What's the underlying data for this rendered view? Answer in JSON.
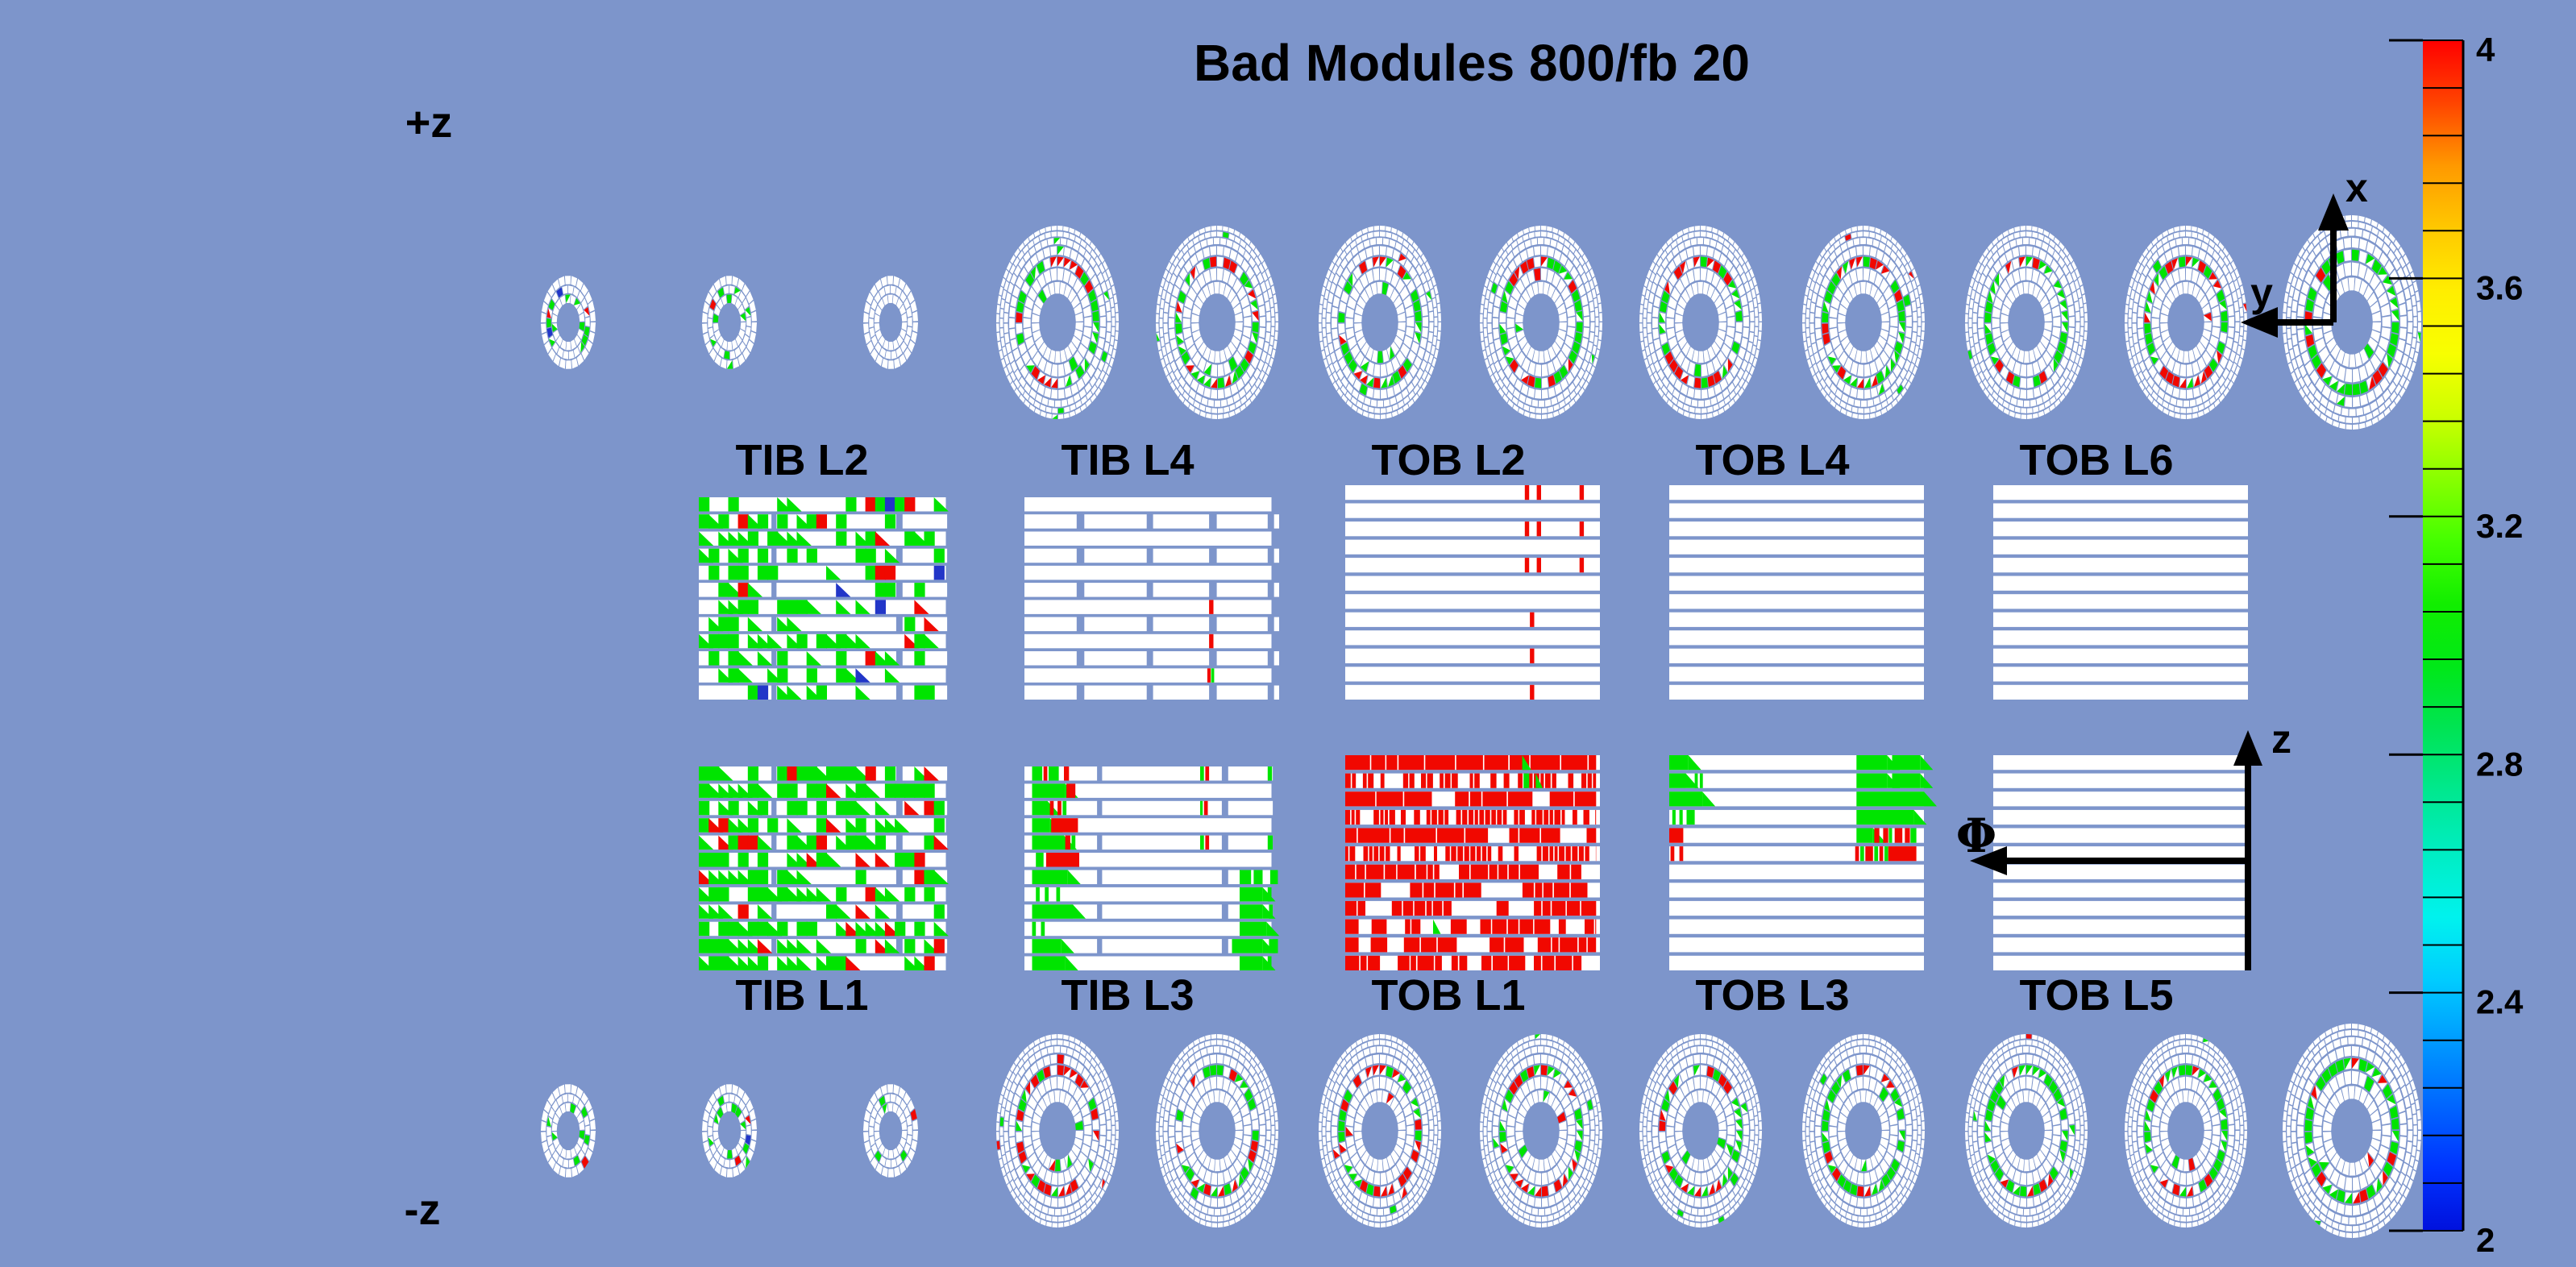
{
  "title": "Bad Modules 800/fb 20",
  "side_labels": {
    "plus_z": "+z",
    "minus_z": "-z"
  },
  "axis_annotations": {
    "x": "x",
    "y": "y",
    "z": "z",
    "phi": "Φ"
  },
  "colorbar": {
    "tick_labels": [
      "4",
      "3.6",
      "3.2",
      "2.8",
      "2.4",
      "2"
    ],
    "minor_divisions": 25,
    "palette_top_to_bottom": [
      "#ff0000",
      "#ff4400",
      "#ff9900",
      "#ffc800",
      "#ffee00",
      "#f8ff00",
      "#ccff00",
      "#88ff00",
      "#44ff00",
      "#11ee00",
      "#00e818",
      "#00e455",
      "#00e890",
      "#00eec4",
      "#00f2ee",
      "#00ccff",
      "#0099ff",
      "#0066ff",
      "#0033ff",
      "#0011dd"
    ]
  },
  "module_colors": {
    "good_green": "#00e400",
    "bad_red": "#f10800",
    "rare_blue": "#2236c8",
    "empty_white": "#ffffff"
  },
  "chart_data": {
    "type": "heatmap",
    "title": "Bad Modules 800/fb 20",
    "color_scale": {
      "min": 2,
      "max": 4,
      "tick_values": [
        4,
        3.6,
        3.2,
        2.8,
        2.4,
        2
      ],
      "palette": "rainbow, red=4 at top through yellow/green/cyan to blue=2 at bottom"
    },
    "endcap": {
      "plus_z": {
        "label": "+z",
        "small_disks": 3,
        "large_disks": 9
      },
      "minus_z": {
        "label": "-z",
        "small_disks": 3,
        "large_disks": 9
      },
      "small_disk_rings": [
        {
          "f0": 0.42,
          "f1": 0.6,
          "n": 18,
          "pg": 0.14,
          "pr": 0.03,
          "pb": 0.012
        },
        {
          "f0": 0.63,
          "f1": 0.79,
          "n": 22,
          "pg": 0.12,
          "pr": 0.025,
          "pb": 0.01
        },
        {
          "f0": 0.82,
          "f1": 1.0,
          "n": 26,
          "pg": 0.03,
          "pr": 0.008,
          "pb": 0
        }
      ],
      "large_disk_rings": [
        {
          "f0": 0.3,
          "f1": 0.42,
          "n": 26,
          "pg": 0.02,
          "pr": 0.008
        },
        {
          "f0": 0.44,
          "f1": 0.56,
          "n": 30,
          "pg": 0.025,
          "pr": 0.008
        },
        {
          "f0": 0.58,
          "f1": 0.68,
          "n": 36
        },
        {
          "f0": 0.7,
          "f1": 0.79,
          "n": 42,
          "pg": 0.02,
          "pr": 0.006
        },
        {
          "f0": 0.81,
          "f1": 0.875,
          "n": 50,
          "pg": 0.012,
          "pr": 0.004
        },
        {
          "f0": 0.89,
          "f1": 0.94,
          "n": 58,
          "pg": 0.008,
          "pr": 0.003
        },
        {
          "f0": 0.955,
          "f1": 1.0,
          "n": 64,
          "pg": 0.006,
          "pr": 0.002
        }
      ],
      "colored_ring_index": 2,
      "profiles": {
        "top": {
          "green_base": 0.42,
          "green_step": 0.05,
          "red_base": 0.3,
          "red_step": -0.022,
          "top_green": 0.25,
          "top_red": 0.55,
          "bottom_green": 0.45,
          "bottom_red": 0.45
        },
        "bottom": {
          "green_base": 0.4,
          "green_step": 0.06,
          "red_base": 0.3,
          "red_step": -0.025,
          "top_green": 0.3,
          "top_red": 0.5,
          "bottom_green": 0.5,
          "bottom_red": 0.4
        }
      }
    },
    "barrel": {
      "top_row": [
        {
          "label": "TIB L2",
          "type": "TIB",
          "pattern": "dense",
          "green": 0.4,
          "red": 0.055,
          "blue": 0.006,
          "seed": 12,
          "seg_phase": 1,
          "blocks": []
        },
        {
          "label": "TIB L4",
          "type": "TIB",
          "pattern": "blocks",
          "seg_phase": 1,
          "segments": [
            [
              0,
              0.205
            ],
            [
              0.235,
              0.48
            ],
            [
              0.505,
              0.725
            ],
            [
              0.755,
              0.955
            ],
            [
              0.98,
              1.0
            ]
          ],
          "blocks": [
            {
              "r": 6,
              "x0": 0.725,
              "x1": 0.742,
              "c": "r"
            },
            {
              "r": 8,
              "x0": 0.725,
              "x1": 0.742,
              "c": "r"
            },
            {
              "r": 10,
              "x0": 0.718,
              "x1": 0.731,
              "c": "r"
            },
            {
              "r": 10,
              "x0": 0.733,
              "x1": 0.745,
              "c": "g"
            }
          ]
        },
        {
          "label": "TOB L2",
          "type": "TOB",
          "pattern": "blocks",
          "blocks": [
            {
              "r": 0,
              "x0": 0.705,
              "x1": 0.722,
              "c": "r"
            },
            {
              "r": 0,
              "x0": 0.752,
              "x1": 0.769,
              "c": "r"
            },
            {
              "r": 0,
              "x0": 0.92,
              "x1": 0.937,
              "c": "r"
            },
            {
              "r": 2,
              "x0": 0.705,
              "x1": 0.722,
              "c": "r"
            },
            {
              "r": 2,
              "x0": 0.752,
              "x1": 0.769,
              "c": "r"
            },
            {
              "r": 2,
              "x0": 0.92,
              "x1": 0.937,
              "c": "r"
            },
            {
              "r": 4,
              "x0": 0.705,
              "x1": 0.722,
              "c": "r"
            },
            {
              "r": 4,
              "x0": 0.752,
              "x1": 0.769,
              "c": "r"
            },
            {
              "r": 4,
              "x0": 0.92,
              "x1": 0.937,
              "c": "r"
            },
            {
              "r": 7,
              "x0": 0.725,
              "x1": 0.742,
              "c": "r"
            },
            {
              "r": 9,
              "x0": 0.725,
              "x1": 0.742,
              "c": "r"
            },
            {
              "r": 11,
              "x0": 0.725,
              "x1": 0.742,
              "c": "r"
            }
          ]
        },
        {
          "label": "TOB L4",
          "type": "TOB",
          "pattern": "empty",
          "blocks": []
        },
        {
          "label": "TOB L6",
          "type": "TOB",
          "pattern": "empty",
          "blocks": []
        }
      ],
      "bottom_row": [
        {
          "label": "TIB L1",
          "type": "TIB",
          "pattern": "dense",
          "green": 0.58,
          "red": 0.085,
          "blue": 0.005,
          "seed": 77,
          "seg_phase": 0,
          "blocks": []
        },
        {
          "label": "TIB L3",
          "type": "TIB",
          "pattern": "blocks",
          "seg_phase": 0,
          "blocks": [
            {
              "r": 0,
              "x0": 0.03,
              "x1": 0.07,
              "c": "g"
            },
            {
              "r": 0,
              "x0": 0.075,
              "x1": 0.09,
              "c": "r"
            },
            {
              "r": 0,
              "x0": 0.095,
              "x1": 0.135,
              "c": "g"
            },
            {
              "r": 0,
              "x0": 0.155,
              "x1": 0.175,
              "c": "r"
            },
            {
              "r": 0,
              "x0": 0.69,
              "x1": 0.705,
              "c": "g"
            },
            {
              "r": 0,
              "x0": 0.71,
              "x1": 0.725,
              "c": "r"
            },
            {
              "r": 0,
              "x0": 0.955,
              "x1": 0.972,
              "c": "g"
            },
            {
              "r": 1,
              "x0": 0.03,
              "x1": 0.16,
              "c": "g"
            },
            {
              "r": 1,
              "x0": 0.165,
              "x1": 0.2,
              "c": "r"
            },
            {
              "r": 2,
              "x0": 0.03,
              "x1": 0.09,
              "c": "g"
            },
            {
              "r": 2,
              "x0": 0.1,
              "x1": 0.115,
              "c": "r"
            },
            {
              "r": 2,
              "x0": 0.13,
              "x1": 0.145,
              "c": "r"
            },
            {
              "r": 2,
              "x0": 0.15,
              "x1": 0.165,
              "c": "g"
            },
            {
              "r": 2,
              "x0": 0.69,
              "x1": 0.7,
              "c": "g"
            },
            {
              "r": 2,
              "x0": 0.705,
              "x1": 0.72,
              "c": "r"
            },
            {
              "r": 3,
              "x0": 0.03,
              "x1": 0.1,
              "c": "g"
            },
            {
              "r": 3,
              "x0": 0.105,
              "x1": 0.21,
              "c": "r"
            },
            {
              "r": 4,
              "x0": 0.03,
              "x1": 0.155,
              "c": "g"
            },
            {
              "r": 4,
              "x0": 0.16,
              "x1": 0.18,
              "c": "r"
            },
            {
              "r": 4,
              "x0": 0.185,
              "x1": 0.2,
              "c": "g"
            },
            {
              "r": 4,
              "x0": 0.69,
              "x1": 0.705,
              "c": "g"
            },
            {
              "r": 4,
              "x0": 0.71,
              "x1": 0.725,
              "c": "r"
            },
            {
              "r": 4,
              "x0": 0.955,
              "x1": 0.975,
              "c": "g"
            },
            {
              "r": 5,
              "x0": 0.045,
              "x1": 0.075,
              "c": "g"
            },
            {
              "r": 5,
              "x0": 0.085,
              "x1": 0.215,
              "c": "r"
            },
            {
              "r": 6,
              "x0": 0.03,
              "x1": 0.17,
              "c": "g"
            },
            {
              "r": 6,
              "x0": 0.845,
              "x1": 0.89,
              "c": "g"
            },
            {
              "r": 6,
              "x0": 0.9,
              "x1": 0.935,
              "c": "g"
            },
            {
              "r": 6,
              "x0": 0.965,
              "x1": 0.995,
              "c": "g"
            },
            {
              "r": 7,
              "x0": 0.045,
              "x1": 0.06,
              "c": "g"
            },
            {
              "r": 7,
              "x0": 0.08,
              "x1": 0.095,
              "c": "g"
            },
            {
              "r": 7,
              "x0": 0.125,
              "x1": 0.14,
              "c": "g"
            },
            {
              "r": 7,
              "x0": 0.845,
              "x1": 0.935,
              "c": "g"
            },
            {
              "r": 7,
              "x0": 0.955,
              "x1": 0.97,
              "c": "g"
            },
            {
              "r": 8,
              "x0": 0.03,
              "x1": 0.19,
              "c": "g"
            },
            {
              "r": 8,
              "x0": 0.845,
              "x1": 0.935,
              "c": "g"
            },
            {
              "r": 8,
              "x0": 0.96,
              "x1": 0.975,
              "c": "g"
            },
            {
              "r": 9,
              "x0": 0.03,
              "x1": 0.045,
              "c": "g"
            },
            {
              "r": 9,
              "x0": 0.065,
              "x1": 0.08,
              "c": "g"
            },
            {
              "r": 9,
              "x0": 0.845,
              "x1": 0.95,
              "c": "g"
            },
            {
              "r": 10,
              "x0": 0.03,
              "x1": 0.145,
              "c": "g"
            },
            {
              "r": 10,
              "x0": 0.815,
              "x1": 0.935,
              "c": "g"
            },
            {
              "r": 10,
              "x0": 0.96,
              "x1": 0.995,
              "c": "g"
            },
            {
              "r": 11,
              "x0": 0.03,
              "x1": 0.16,
              "c": "g"
            },
            {
              "r": 11,
              "x0": 0.845,
              "x1": 0.935,
              "c": "g"
            },
            {
              "r": 11,
              "x0": 0.955,
              "x1": 0.97,
              "c": "g"
            }
          ]
        },
        {
          "label": "TOB L1",
          "type": "TOB",
          "pattern": "dense-red",
          "red": 0.75,
          "seed": 5,
          "blocks": [
            {
              "r": 0,
              "x0": 0.695,
              "x1": 0.73,
              "c": "g",
              "tri": true
            },
            {
              "r": 1,
              "x0": 0.7,
              "x1": 0.722,
              "c": "g"
            },
            {
              "r": 1,
              "x0": 0.748,
              "x1": 0.775,
              "c": "g",
              "tri": true
            },
            {
              "r": 9,
              "x0": 0.345,
              "x1": 0.375,
              "c": "g",
              "tri": true
            }
          ]
        },
        {
          "label": "TOB L3",
          "type": "TOB",
          "pattern": "blocks",
          "blocks": [
            {
              "r": 0,
              "x0": 0,
              "x1": 0.075,
              "c": "g"
            },
            {
              "r": 0,
              "x0": 0.735,
              "x1": 0.855,
              "c": "g"
            },
            {
              "r": 0,
              "x0": 0.875,
              "x1": 0.985,
              "c": "g"
            },
            {
              "r": 1,
              "x0": 0,
              "x1": 0.065,
              "c": "g"
            },
            {
              "r": 1,
              "x0": 0.1,
              "x1": 0.112,
              "c": "g"
            },
            {
              "r": 1,
              "x0": 0.12,
              "x1": 0.132,
              "c": "g"
            },
            {
              "r": 1,
              "x0": 0.735,
              "x1": 0.855,
              "c": "g"
            },
            {
              "r": 1,
              "x0": 0.875,
              "x1": 0.985,
              "c": "g"
            },
            {
              "r": 2,
              "x0": 0,
              "x1": 0.13,
              "c": "g"
            },
            {
              "r": 2,
              "x0": 0.735,
              "x1": 1.0,
              "c": "g"
            },
            {
              "r": 3,
              "x0": 0.012,
              "x1": 0.025,
              "c": "g"
            },
            {
              "r": 3,
              "x0": 0.04,
              "x1": 0.053,
              "c": "g"
            },
            {
              "r": 3,
              "x0": 0.068,
              "x1": 0.1,
              "c": "g"
            },
            {
              "r": 3,
              "x0": 0.735,
              "x1": 0.96,
              "c": "g"
            },
            {
              "r": 4,
              "x0": 0,
              "x1": 0.055,
              "c": "r"
            },
            {
              "r": 4,
              "x0": 0.735,
              "x1": 0.8,
              "c": "g"
            },
            {
              "r": 4,
              "x0": 0.805,
              "x1": 0.825,
              "c": "r"
            },
            {
              "r": 4,
              "x0": 0.84,
              "x1": 0.86,
              "c": "r"
            },
            {
              "r": 4,
              "x0": 0.862,
              "x1": 0.875,
              "c": "g"
            },
            {
              "r": 4,
              "x0": 0.885,
              "x1": 0.915,
              "c": "r"
            },
            {
              "r": 4,
              "x0": 0.925,
              "x1": 0.945,
              "c": "r"
            },
            {
              "r": 4,
              "x0": 0.947,
              "x1": 0.97,
              "c": "g"
            },
            {
              "r": 5,
              "x0": 0.005,
              "x1": 0.02,
              "c": "r"
            },
            {
              "r": 5,
              "x0": 0.04,
              "x1": 0.055,
              "c": "r"
            },
            {
              "r": 5,
              "x0": 0.73,
              "x1": 0.745,
              "c": "r"
            },
            {
              "r": 5,
              "x0": 0.75,
              "x1": 0.765,
              "c": "g"
            },
            {
              "r": 5,
              "x0": 0.77,
              "x1": 0.8,
              "c": "r"
            },
            {
              "r": 5,
              "x0": 0.805,
              "x1": 0.82,
              "c": "g"
            },
            {
              "r": 5,
              "x0": 0.825,
              "x1": 0.84,
              "c": "r"
            },
            {
              "r": 5,
              "x0": 0.845,
              "x1": 0.86,
              "c": "g"
            },
            {
              "r": 5,
              "x0": 0.86,
              "x1": 0.97,
              "c": "r"
            }
          ]
        },
        {
          "label": "TOB L5",
          "type": "TOB",
          "pattern": "empty",
          "blocks": []
        }
      ]
    }
  }
}
